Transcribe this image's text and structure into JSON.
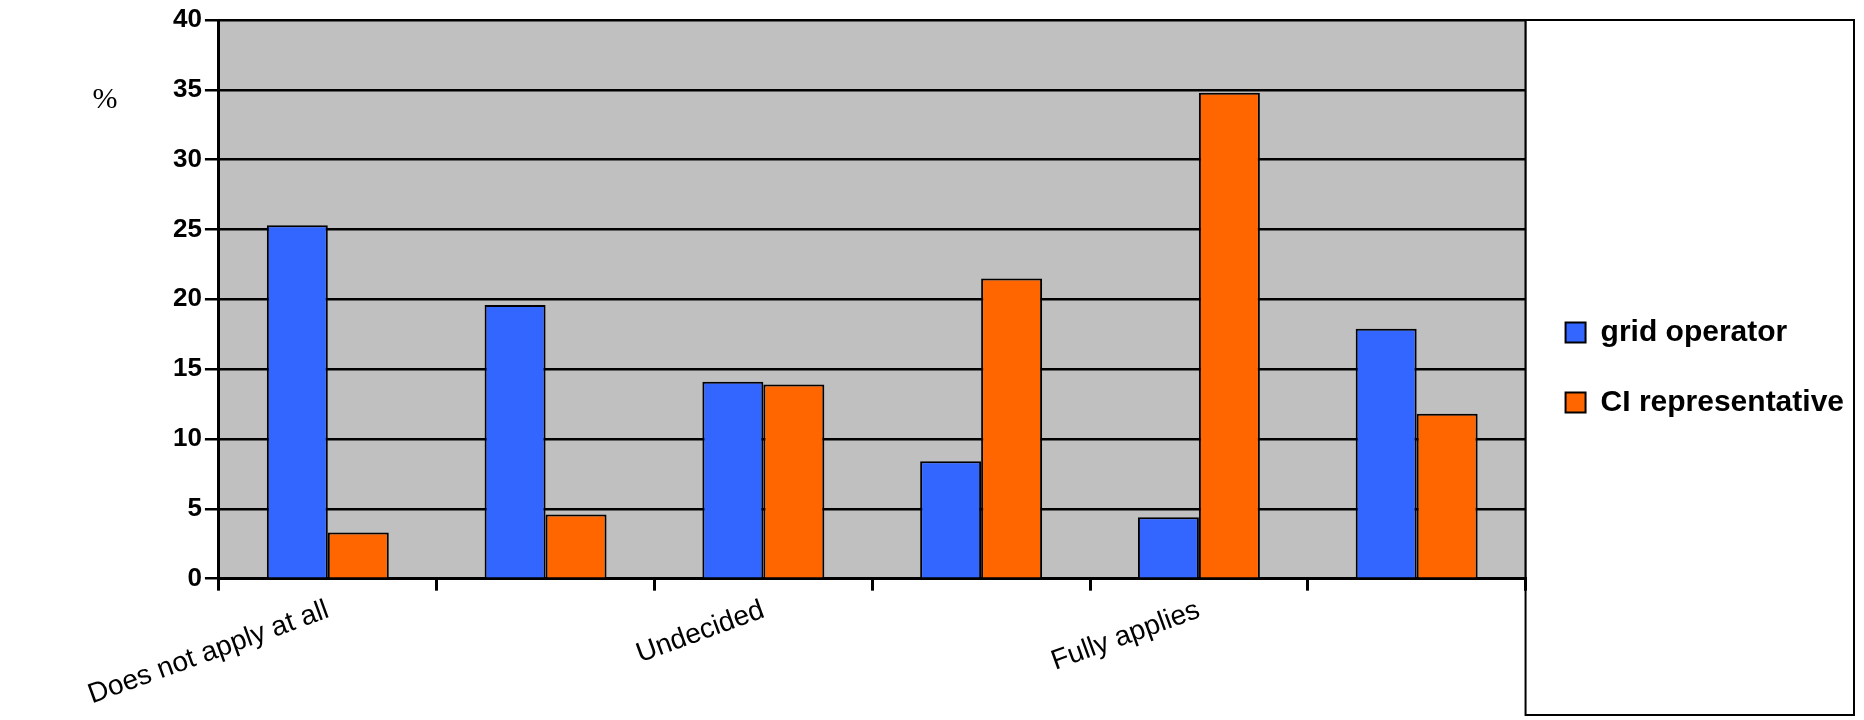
{
  "chart_data": {
    "type": "bar",
    "ylabel": "%",
    "categories": [
      "Does not apply at all",
      null,
      "Undecided",
      null,
      "Fully applies",
      null
    ],
    "series": [
      {
        "name": "grid operator",
        "color": "#3366ff",
        "values": [
          25.3,
          19.6,
          14.1,
          8.4,
          4.4,
          17.9
        ]
      },
      {
        "name": "CI representative",
        "color": "#ff6600",
        "values": [
          3.3,
          4.6,
          13.9,
          21.5,
          34.8,
          11.8
        ]
      }
    ],
    "ylim": [
      0,
      40
    ],
    "yticks": [
      0,
      5,
      10,
      15,
      20,
      25,
      30,
      35,
      40
    ],
    "grid": "y",
    "legend": "right"
  }
}
